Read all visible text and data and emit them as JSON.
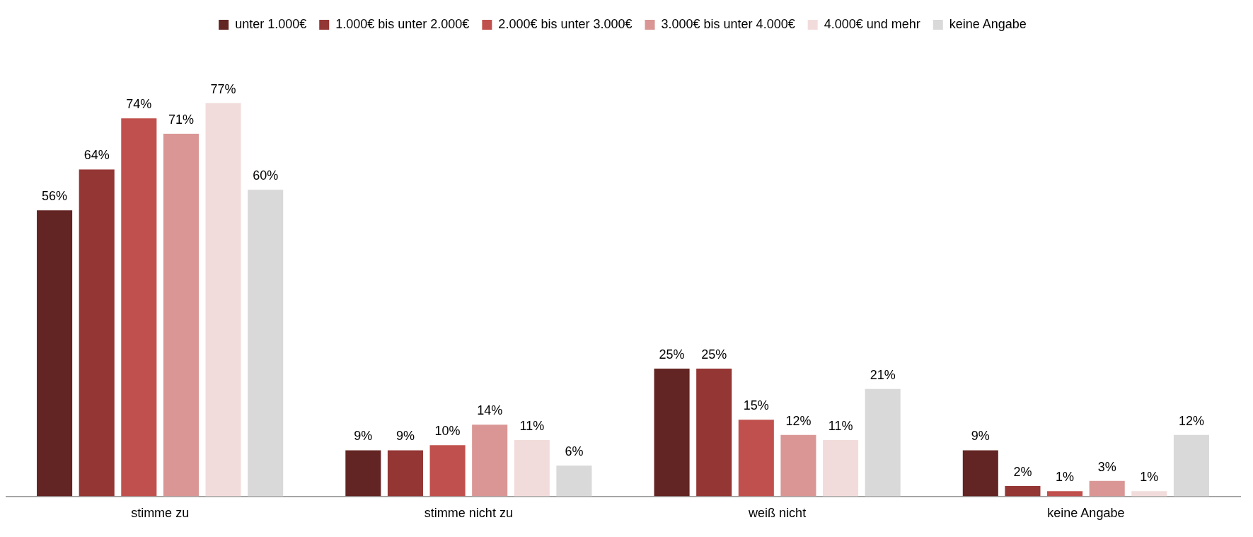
{
  "chart_data": {
    "type": "bar",
    "categories": [
      "stimme zu",
      "stimme nicht zu",
      "weiß nicht",
      "keine Angabe"
    ],
    "series": [
      {
        "name": "unter 1.000€",
        "color": "#632523",
        "values": [
          56,
          9,
          25,
          9
        ],
        "value_labels": [
          "56%",
          "9%",
          "25%",
          "9%"
        ]
      },
      {
        "name": "1.000€ bis unter 2.000€",
        "color": "#943634",
        "values": [
          64,
          9,
          25,
          2
        ],
        "value_labels": [
          "64%",
          "9%",
          "25%",
          "2%"
        ]
      },
      {
        "name": "2.000€ bis unter 3.000€",
        "color": "#c0504d",
        "values": [
          74,
          10,
          15,
          1
        ],
        "value_labels": [
          "74%",
          "10%",
          "15%",
          "1%"
        ]
      },
      {
        "name": "3.000€ bis unter 4.000€",
        "color": "#d99694",
        "values": [
          71,
          14,
          12,
          3
        ],
        "value_labels": [
          "71%",
          "14%",
          "12%",
          "3%"
        ]
      },
      {
        "name": "4.000€ und mehr",
        "color": "#f2dcdb",
        "values": [
          77,
          11,
          11,
          1
        ],
        "value_labels": [
          "77%",
          "11%",
          "11%",
          "1%"
        ]
      },
      {
        "name": "keine Angabe",
        "color": "#d9d9d9",
        "values": [
          60,
          6,
          21,
          12
        ],
        "value_labels": [
          "60%",
          "6%",
          "21%",
          "12%"
        ]
      }
    ],
    "legend": "top",
    "grid": false
  }
}
